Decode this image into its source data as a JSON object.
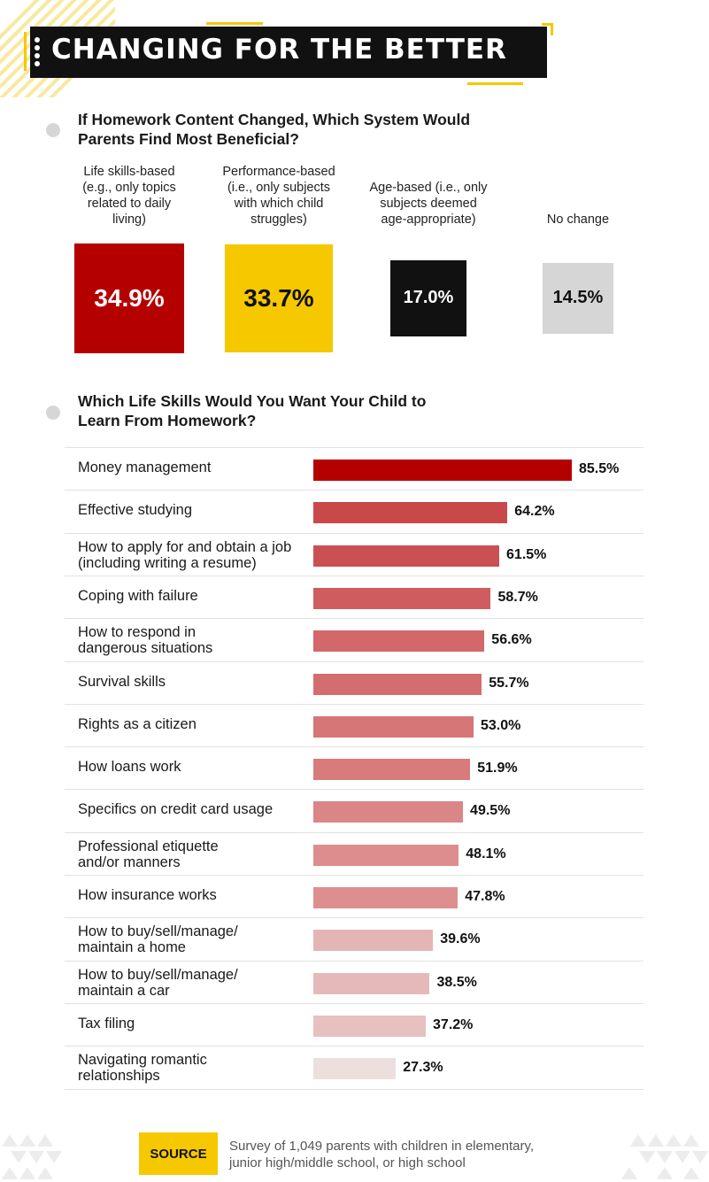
{
  "header": {
    "title": "CHANGING FOR THE BETTER"
  },
  "colors": {
    "accent_yellow": "#f5c800",
    "dark": "#111111",
    "red": "#b50000",
    "grey_box": "#d6d6d6"
  },
  "section1": {
    "question": "If Homework Content Changed, Which System Would Parents Find Most Beneficial?",
    "question_lines": [
      "If Homework Content Changed, Which System Would",
      "Parents Find Most Beneficial?"
    ]
  },
  "section2": {
    "question": "Which Life Skills Would You Want Your Child to Learn From Homework?",
    "question_lines": [
      "Which Life Skills Would You Want Your Child to",
      "Learn From Homework?"
    ]
  },
  "chart_data": [
    {
      "type": "bar",
      "title": "If Homework Content Changed, Which System Would Parents Find Most Beneficial?",
      "unit": "%",
      "categories": [
        "Life skills-based (e.g., only topics related to daily living)",
        "Performance-based (i.e., only subjects with which child struggles)",
        "Age-based (i.e., only subjects deemed age-appropriate)",
        "No change"
      ],
      "category_lines": [
        [
          "Life skills-based",
          "(e.g., only topics",
          "related to daily",
          "living)"
        ],
        [
          "Performance-based",
          "(i.e., only subjects",
          "with which child",
          "struggles)"
        ],
        [
          "Age-based (i.e., only",
          "subjects deemed",
          "age-appropriate)"
        ],
        [
          "No change"
        ]
      ],
      "values": [
        34.9,
        33.7,
        17.0,
        14.5
      ],
      "value_labels": [
        "34.9%",
        "33.7%",
        "17.0%",
        "14.5%"
      ],
      "colors": [
        "#b50000",
        "#f5c800",
        "#111111",
        "#d6d6d6"
      ],
      "text_colors": [
        "#ffffff",
        "#111111",
        "#ffffff",
        "#111111"
      ]
    },
    {
      "type": "bar",
      "orientation": "horizontal",
      "title": "Which Life Skills Would You Want Your Child to Learn From Homework?",
      "unit": "%",
      "categories": [
        "Money management",
        "Effective studying",
        "How to apply for and obtain a job (including writing a resume)",
        "Coping with failure",
        "How to respond in dangerous situations",
        "Survival skills",
        "Rights as a citizen",
        "How loans work",
        "Specifics on credit card usage",
        "Professional etiquette and/or manners",
        "How insurance works",
        "How to buy/sell/manage/ maintain a home",
        "How to buy/sell/manage/ maintain a car",
        "Tax filing",
        "Navigating romantic relationships"
      ],
      "category_lines": [
        [
          "Money management"
        ],
        [
          "Effective studying"
        ],
        [
          "How to apply for and obtain a job",
          "(including writing a resume)"
        ],
        [
          "Coping with failure"
        ],
        [
          "How to respond in",
          "dangerous situations"
        ],
        [
          "Survival skills"
        ],
        [
          "Rights as a citizen"
        ],
        [
          "How loans work"
        ],
        [
          "Specifics on credit card usage"
        ],
        [
          "Professional etiquette",
          "and/or manners"
        ],
        [
          "How insurance works"
        ],
        [
          "How to buy/sell/manage/",
          "maintain a home"
        ],
        [
          "How to buy/sell/manage/",
          "maintain a car"
        ],
        [
          "Tax filing"
        ],
        [
          "Navigating romantic",
          "relationships"
        ]
      ],
      "values": [
        85.5,
        64.2,
        61.5,
        58.7,
        56.6,
        55.7,
        53.0,
        51.9,
        49.5,
        48.1,
        47.8,
        39.6,
        38.5,
        37.2,
        27.3
      ],
      "value_labels": [
        "85.5%",
        "64.2%",
        "61.5%",
        "58.7%",
        "56.6%",
        "55.7%",
        "53.0%",
        "51.9%",
        "49.5%",
        "48.1%",
        "47.8%",
        "39.6%",
        "38.5%",
        "37.2%",
        "27.3%"
      ],
      "colors": [
        "#b50000",
        "#c9484a",
        "#cb5053",
        "#cf5d5f",
        "#d2686a",
        "#d46d6e",
        "#d67676",
        "#d87b7b",
        "#db8686",
        "#dd8d8d",
        "#dd8f8f",
        "#e4b5b5",
        "#e5b9b9",
        "#e7c0c0",
        "#eedfdf"
      ]
    }
  ],
  "footer": {
    "source_label": "SOURCE",
    "source_lines": [
      "Survey of 1,049 parents with children in elementary,",
      "junior high/middle school, or high school"
    ]
  }
}
